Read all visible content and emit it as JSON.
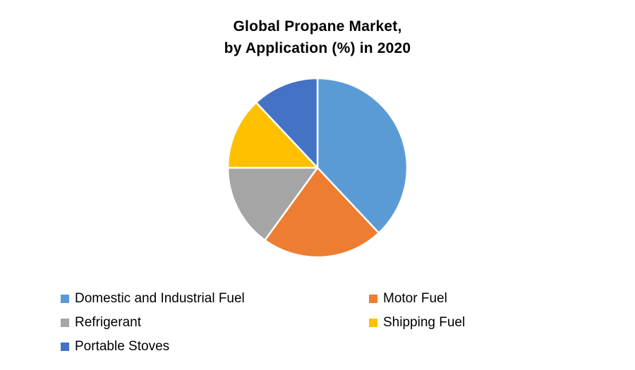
{
  "title": {
    "line1": "Global Propane Market,",
    "line2": "by Application (%) in 2020"
  },
  "chart_data": {
    "type": "pie",
    "title": "Global Propane Market, by Application (%) in 2020",
    "start_angle_deg": 0,
    "direction": "clockwise",
    "legend_position": "bottom",
    "legend_columns": 2,
    "slice_border_color": "#ffffff",
    "slices": [
      {
        "label": "Domestic and Industrial Fuel",
        "value": 38,
        "color": "#5B9BD5"
      },
      {
        "label": "Motor Fuel",
        "value": 22,
        "color": "#ED7D31"
      },
      {
        "label": "Refrigerant",
        "value": 15,
        "color": "#A5A5A5"
      },
      {
        "label": "Shipping Fuel",
        "value": 13,
        "color": "#FFC000"
      },
      {
        "label": "Portable Stoves",
        "value": 12,
        "color": "#4472C4"
      }
    ]
  }
}
